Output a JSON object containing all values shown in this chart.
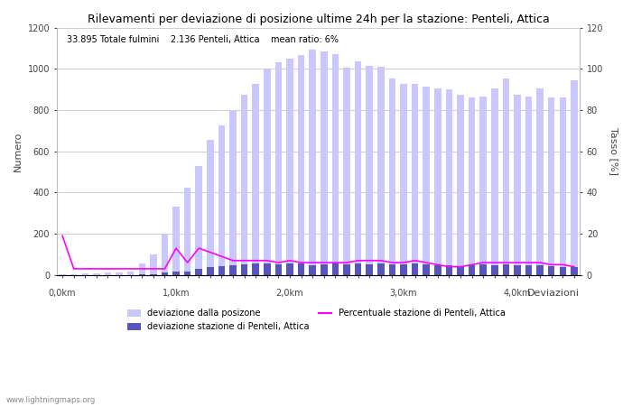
{
  "title": "Rilevamenti per deviazione di posizione ultime 24h per la stazione: Penteli, Attica",
  "subtitle_parts": [
    "33.895 Totale fulmini",
    "2.136 Penteli, Attica",
    "mean ratio: 6%"
  ],
  "xlabel": "Deviazioni",
  "ylabel_left": "Numero",
  "ylabel_right": "Tasso [%]",
  "ylim_left": [
    0,
    1200
  ],
  "ylim_right": [
    0,
    120
  ],
  "yticks_left": [
    0,
    200,
    400,
    600,
    800,
    1000,
    1200
  ],
  "yticks_right": [
    0,
    20,
    40,
    60,
    80,
    100,
    120
  ],
  "km_tick_positions": [
    0,
    10,
    20,
    30,
    40
  ],
  "km_tick_labels": [
    "0,0km",
    "1,0km",
    "2,0km",
    "3,0km",
    "4,0km"
  ],
  "n_bars": 46,
  "bar_step_km": 0.1,
  "total_bars_light": [
    3,
    5,
    6,
    8,
    10,
    12,
    15,
    55,
    100,
    195,
    330,
    425,
    530,
    655,
    725,
    795,
    875,
    925,
    1000,
    1030,
    1050,
    1065,
    1095,
    1085,
    1070,
    1005,
    1035,
    1015,
    1010,
    955,
    925,
    925,
    915,
    905,
    900,
    875,
    860,
    865,
    905,
    955,
    875,
    865,
    905,
    860,
    860,
    945
  ],
  "station_bars_blue": [
    0,
    0,
    0,
    0,
    0,
    1,
    1,
    3,
    4,
    12,
    18,
    16,
    28,
    38,
    42,
    48,
    52,
    58,
    56,
    52,
    58,
    55,
    48,
    52,
    58,
    52,
    55,
    52,
    58,
    52,
    52,
    55,
    52,
    48,
    45,
    42,
    45,
    50,
    48,
    50,
    45,
    48,
    45,
    42,
    40,
    40
  ],
  "ratio_line": [
    19,
    3,
    3,
    3,
    3,
    3,
    3,
    3,
    3,
    3,
    13,
    6,
    13,
    11,
    9,
    7,
    7,
    7,
    7,
    6,
    7,
    6,
    6,
    6,
    6,
    6,
    7,
    7,
    7,
    6,
    6,
    7,
    6,
    5,
    4,
    4,
    5,
    6,
    6,
    6,
    6,
    6,
    6,
    5,
    5,
    4
  ],
  "light_bar_color": "#c8c8ff",
  "blue_bar_color": "#5555bb",
  "line_color": "#ff00ff",
  "bg_color": "#ffffff",
  "grid_color": "#bbbbbb",
  "watermark": "www.lightningmaps.org",
  "legend_entries": [
    {
      "label": "deviazione dalla posizone",
      "type": "bar",
      "color": "#c8c8ff"
    },
    {
      "label": "deviazione stazione di Penteli, Attica",
      "type": "bar",
      "color": "#5555bb"
    },
    {
      "label": "Percentuale stazione di Penteli, Attica",
      "type": "line",
      "color": "#ff00ff"
    }
  ]
}
